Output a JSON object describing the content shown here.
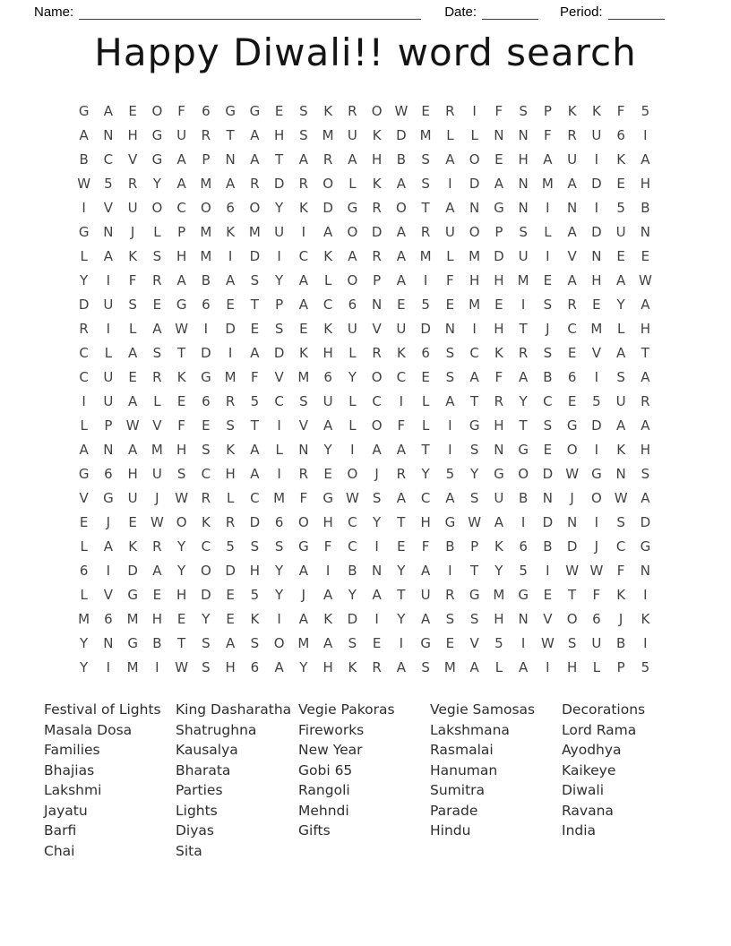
{
  "header": {
    "name_label": "Name:",
    "date_label": "Date:",
    "period_label": "Period:"
  },
  "title": "Happy Diwali!! word search",
  "grid": {
    "rows": [
      "GAEOF6GGESKROWERIFSPKKF5",
      "ANHGURTAHSMUKDMLLNNFRU6I",
      "BCVGAPNATARAHBSAOEHAUIKA",
      "W5RYAMARDROLKASIDANMADEH",
      "IVUOCO6OYKDGROTANGNINI5B",
      "GNJLPMKMUIAODARUOPSLADUN",
      "LAKSHMIDICKARAMLMDUIVNEE",
      "YIFRABASYALOPAIFHHMEAHAW",
      "DUSEG6ETPAC6NE5EMEISREYA",
      "RILAWIDESEKUVUDNIHTJCMLH",
      "CLASTDIADKHLRK6SCKRSEVAT",
      "CUERKGMFVM6YOCESAFAB6ISA",
      "IUALE6R5CSULCILATRYCE5UR",
      "LPWVFESTIVALOFLIGHTSGDAA",
      "ANAMHSKALNYIAATISNGEOIKH",
      "G6HUSCHAIREOJRY5YGODWGNS",
      "VGUJWRLCMFGWSACASUBNJOWA",
      "EJEWOKRD6OHCYTHGWAIDNISD",
      "LAKRYC5SSGFCIEFBPK6BDJCG",
      "6IDAYODHYAIBNYAITY5IWWFN",
      "LVGEHDE5YJAYATURGMGETFKI",
      "M6MHEYEKIAKDIYASSHNVO6JK",
      "YNGBTSASOMASEIGEV5IWSUBI",
      "YIMIWSH6AYHKRASMALAIHLP5"
    ]
  },
  "word_list": {
    "columns": [
      [
        "Festival of Lights",
        "Masala Dosa",
        "Families",
        "Bhajias",
        "Lakshmi",
        "Jayatu",
        "Barfi",
        "Chai"
      ],
      [
        "King Dasharatha",
        "Shatrughna",
        "Kausalya",
        "Bharata",
        "Parties",
        "Lights",
        "Diyas",
        "Sita"
      ],
      [
        "Vegie Pakoras",
        "Fireworks",
        "New Year",
        "Gobi 65",
        "Rangoli",
        "Mehndi",
        "Gifts"
      ],
      [
        "Vegie Samosas",
        "Lakshmana",
        "Rasmalai",
        "Hanuman",
        "Sumitra",
        "Parade",
        "Hindu"
      ],
      [
        "Decorations",
        "Lord Rama",
        "Ayodhya",
        "Kaikeye",
        "Diwali",
        "Ravana",
        "India"
      ]
    ]
  },
  "colors": {
    "page_background": "#ffffff",
    "text": "#141414",
    "grid_text": "#424242",
    "blank_line": "#3c3c3c"
  }
}
